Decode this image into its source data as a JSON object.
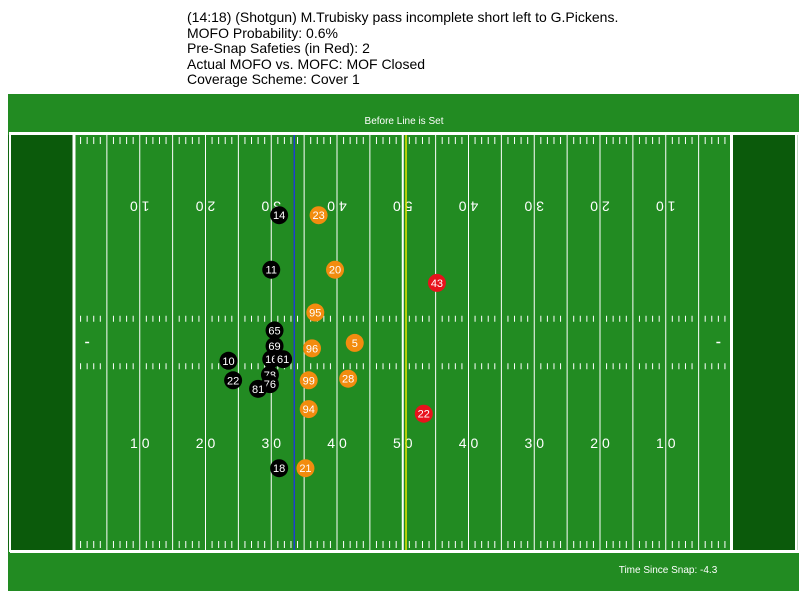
{
  "header": {
    "play_description": "(14:18) (Shotgun) M.Trubisky pass incomplete short left to G.Pickens.",
    "mofo_probability": "MOFO Probability: 0.6%",
    "pre_snap_safeties": "Pre-Snap Safeties (in Red): 2",
    "actual_mofo": "Actual MOFO vs. MOFC: MOF Closed",
    "coverage_scheme": "Coverage Scheme: Cover 1"
  },
  "field": {
    "top_banner": "Before Line is Set",
    "bottom_banner": "Time Since Snap: -4.3",
    "colors": {
      "turf": "#228b22",
      "endzone": "#0b5a0b",
      "offense": "#000000",
      "defense": "#f28c0f",
      "safety": "#e8121c",
      "line_of_scrimmage": "#1f3fd0",
      "first_down": "#e6e600"
    }
  },
  "chart_data": {
    "type": "scatter",
    "title": "",
    "x_axis": "field yard line (0 = left goal line, 100 = right goal line)",
    "y_axis": "yards from bottom sideline",
    "xlim": [
      -10,
      110
    ],
    "ylim": [
      0,
      53.3
    ],
    "top_yard_numbers": [
      "1 0",
      "2 0",
      "3 0",
      "4 0",
      "5 0",
      "4 0",
      "3 0",
      "2 0",
      "1 0"
    ],
    "bottom_yard_numbers": [
      "1 0",
      "2 0",
      "3 0",
      "4 0",
      "5 0",
      "4 0",
      "3 0",
      "2 0",
      "1 0"
    ],
    "line_of_scrimmage": 33.5,
    "first_down_line": 50.5,
    "series": [
      {
        "role": "offense",
        "points": [
          {
            "jersey": "14",
            "x": 31.2,
            "y": 43.0
          },
          {
            "jersey": "11",
            "x": 30.0,
            "y": 36.0
          },
          {
            "jersey": "65",
            "x": 30.5,
            "y": 28.2
          },
          {
            "jersey": "69",
            "x": 30.5,
            "y": 26.2
          },
          {
            "jersey": "16",
            "x": 30.0,
            "y": 24.5
          },
          {
            "jersey": "61",
            "x": 31.8,
            "y": 24.5
          },
          {
            "jersey": "10",
            "x": 23.5,
            "y": 24.3
          },
          {
            "jersey": "78",
            "x": 29.8,
            "y": 22.5
          },
          {
            "jersey": "22",
            "x": 24.2,
            "y": 21.8
          },
          {
            "jersey": "76",
            "x": 29.8,
            "y": 21.3
          },
          {
            "jersey": "81",
            "x": 28.0,
            "y": 20.7
          },
          {
            "jersey": "18",
            "x": 31.2,
            "y": 10.5
          }
        ]
      },
      {
        "role": "defense",
        "points": [
          {
            "jersey": "23",
            "x": 37.2,
            "y": 43.0
          },
          {
            "jersey": "20",
            "x": 39.7,
            "y": 36.0
          },
          {
            "jersey": "95",
            "x": 36.7,
            "y": 30.5
          },
          {
            "jersey": "5",
            "x": 42.7,
            "y": 26.6
          },
          {
            "jersey": "96",
            "x": 36.2,
            "y": 25.9
          },
          {
            "jersey": "28",
            "x": 41.7,
            "y": 22.0
          },
          {
            "jersey": "99",
            "x": 35.7,
            "y": 21.8
          },
          {
            "jersey": "94",
            "x": 35.7,
            "y": 18.1
          },
          {
            "jersey": "21",
            "x": 35.2,
            "y": 10.5
          }
        ]
      },
      {
        "role": "safety",
        "points": [
          {
            "jersey": "43",
            "x": 55.2,
            "y": 34.3
          },
          {
            "jersey": "22",
            "x": 53.2,
            "y": 17.5
          }
        ]
      }
    ]
  }
}
